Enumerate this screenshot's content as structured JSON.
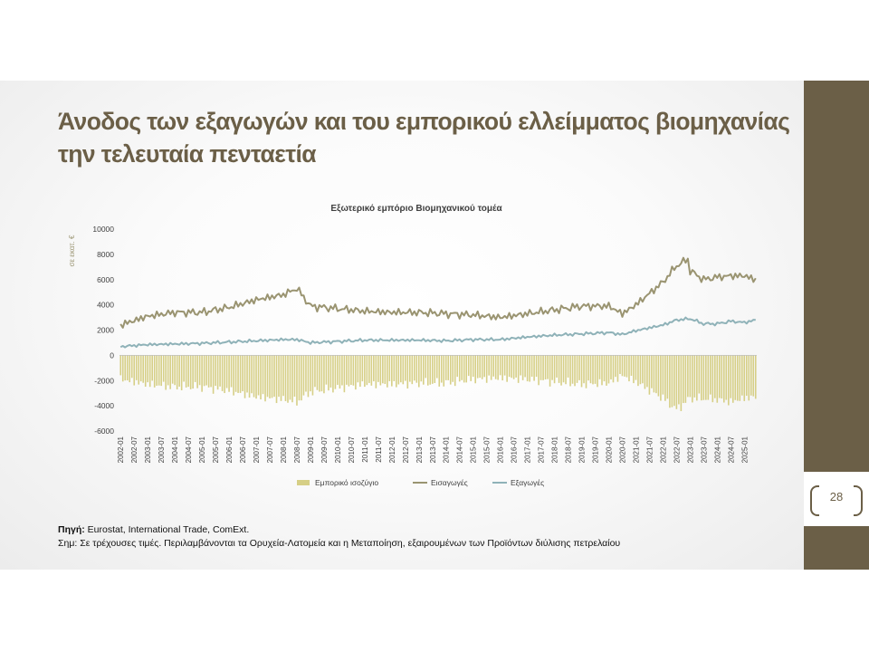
{
  "slide": {
    "title": "Άνοδος των εξαγωγών και του εμπορικού ελλείμματος βιομηχανίας την τελευταία πενταετία",
    "page_number": "28",
    "source_label": "Πηγή:",
    "source_text": " Eurostat, International Trade, ComExt.",
    "note_text": "Σημ: Σε τρέχουσες τιμές. Περιλαμβάνονται τα Ορυχεία-Λατομεία και η Μεταποίηση, εξαιρουμένων των Προϊόντων διύλισης πετρελαίου",
    "colors": {
      "brand": "#6b5f47",
      "imports": "#9a9471",
      "exports": "#8fb2b8",
      "balance": "#d6cf86"
    }
  },
  "chart_data": {
    "type": "line",
    "title": "Εξωτερικό εμπόριο Βιομηχανικού τομέα",
    "ylabel": "σε εκατ. €",
    "ylim": [
      -6000,
      10000
    ],
    "yticks": [
      10000,
      8000,
      6000,
      4000,
      2000,
      0,
      -2000,
      -4000,
      -6000
    ],
    "grid": false,
    "legend_position": "bottom",
    "xtick_labels": [
      "2002-01",
      "2002-07",
      "2003-01",
      "2003-07",
      "2004-01",
      "2004-07",
      "2005-01",
      "2005-07",
      "2006-01",
      "2006-07",
      "2007-01",
      "2007-07",
      "2008-01",
      "2008-07",
      "2009-01",
      "2009-07",
      "2010-01",
      "2010-07",
      "2011-01",
      "2011-07",
      "2012-01",
      "2012-07",
      "2013-01",
      "2013-07",
      "2014-01",
      "2014-07",
      "2015-01",
      "2015-07",
      "2016-01",
      "2016-07",
      "2017-01",
      "2017-07",
      "2018-01",
      "2018-07",
      "2019-01",
      "2019-07",
      "2020-01",
      "2020-07",
      "2021-01",
      "2021-07",
      "2022-01",
      "2022-07",
      "2023-01",
      "2023-07",
      "2024-01",
      "2024-07",
      "2025-01"
    ],
    "x_start": "2002-01",
    "x_end": "2025-06",
    "frequency": "monthly",
    "series": [
      {
        "name": "Εμπορικό ισοζύγιο",
        "type": "bar",
        "color": "#d6cf86",
        "anchors": [
          [
            "2002-01",
            -1900
          ],
          [
            "2003-01",
            -2300
          ],
          [
            "2004-01",
            -2500
          ],
          [
            "2005-01",
            -2500
          ],
          [
            "2006-01",
            -2800
          ],
          [
            "2007-01",
            -3300
          ],
          [
            "2008-01",
            -3500
          ],
          [
            "2008-07",
            -3700
          ],
          [
            "2009-01",
            -2900
          ],
          [
            "2010-01",
            -2600
          ],
          [
            "2011-01",
            -2300
          ],
          [
            "2012-01",
            -2300
          ],
          [
            "2013-01",
            -2200
          ],
          [
            "2014-01",
            -2200
          ],
          [
            "2015-01",
            -1900
          ],
          [
            "2016-01",
            -1800
          ],
          [
            "2017-01",
            -1900
          ],
          [
            "2018-01",
            -2100
          ],
          [
            "2019-01",
            -2300
          ],
          [
            "2020-01",
            -2200
          ],
          [
            "2020-07",
            -1600
          ],
          [
            "2021-01",
            -2100
          ],
          [
            "2022-01",
            -3400
          ],
          [
            "2022-07",
            -4300
          ],
          [
            "2023-01",
            -3400
          ],
          [
            "2024-01",
            -3500
          ],
          [
            "2024-07",
            -3700
          ],
          [
            "2025-01",
            -3400
          ],
          [
            "2025-06",
            -3300
          ]
        ]
      },
      {
        "name": "Εισαγωγές",
        "type": "line",
        "color": "#9a9471",
        "anchors": [
          [
            "2002-01",
            2400
          ],
          [
            "2003-01",
            3100
          ],
          [
            "2004-01",
            3400
          ],
          [
            "2005-01",
            3400
          ],
          [
            "2006-01",
            3800
          ],
          [
            "2007-01",
            4400
          ],
          [
            "2008-01",
            4800
          ],
          [
            "2008-07",
            5300
          ],
          [
            "2009-01",
            3900
          ],
          [
            "2010-01",
            3700
          ],
          [
            "2011-01",
            3500
          ],
          [
            "2012-01",
            3400
          ],
          [
            "2013-01",
            3400
          ],
          [
            "2014-01",
            3300
          ],
          [
            "2015-01",
            3200
          ],
          [
            "2016-01",
            3000
          ],
          [
            "2017-01",
            3300
          ],
          [
            "2018-01",
            3600
          ],
          [
            "2019-01",
            3900
          ],
          [
            "2020-01",
            3900
          ],
          [
            "2020-07",
            3300
          ],
          [
            "2021-01",
            4000
          ],
          [
            "2022-01",
            5800
          ],
          [
            "2022-07",
            7100
          ],
          [
            "2022-12",
            7600
          ],
          [
            "2023-01",
            6700
          ],
          [
            "2023-07",
            6000
          ],
          [
            "2024-01",
            6200
          ],
          [
            "2024-07",
            6300
          ],
          [
            "2025-01",
            6300
          ],
          [
            "2025-06",
            6000
          ]
        ]
      },
      {
        "name": "Εξαγωγές",
        "type": "line",
        "color": "#8fb2b8",
        "anchors": [
          [
            "2002-01",
            700
          ],
          [
            "2003-01",
            850
          ],
          [
            "2004-01",
            900
          ],
          [
            "2005-01",
            950
          ],
          [
            "2006-01",
            1050
          ],
          [
            "2007-01",
            1150
          ],
          [
            "2008-01",
            1250
          ],
          [
            "2008-07",
            1250
          ],
          [
            "2009-01",
            1000
          ],
          [
            "2010-01",
            1100
          ],
          [
            "2011-01",
            1200
          ],
          [
            "2012-01",
            1200
          ],
          [
            "2013-01",
            1200
          ],
          [
            "2014-01",
            1150
          ],
          [
            "2015-01",
            1250
          ],
          [
            "2016-01",
            1250
          ],
          [
            "2017-01",
            1450
          ],
          [
            "2018-01",
            1600
          ],
          [
            "2019-01",
            1700
          ],
          [
            "2020-01",
            1800
          ],
          [
            "2020-07",
            1650
          ],
          [
            "2021-01",
            1950
          ],
          [
            "2022-01",
            2400
          ],
          [
            "2022-07",
            2800
          ],
          [
            "2023-01",
            2900
          ],
          [
            "2023-07",
            2500
          ],
          [
            "2024-01",
            2500
          ],
          [
            "2024-07",
            2700
          ],
          [
            "2025-01",
            2600
          ],
          [
            "2025-06",
            2800
          ]
        ]
      }
    ]
  }
}
